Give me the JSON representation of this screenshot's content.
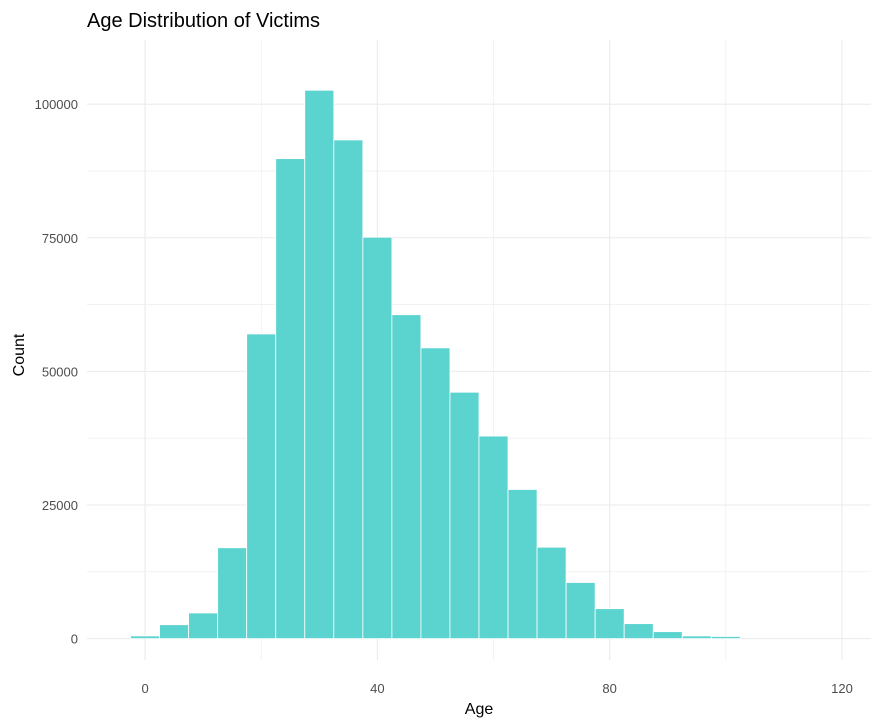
{
  "chart_data": {
    "type": "bar",
    "title": "Age Distribution of Victims",
    "xlabel": "Age",
    "ylabel": "Count",
    "bin_width": 5,
    "x": [
      0,
      5,
      10,
      15,
      20,
      25,
      30,
      35,
      40,
      45,
      50,
      55,
      60,
      65,
      70,
      75,
      80,
      85,
      90,
      95,
      100
    ],
    "values": [
      500,
      2600,
      4800,
      17000,
      57000,
      89800,
      102600,
      93300,
      75100,
      60600,
      54400,
      46100,
      37900,
      27900,
      17100,
      10500,
      5600,
      2800,
      1300,
      500,
      400
    ],
    "xlim": [
      -10,
      125
    ],
    "ylim": [
      -4000,
      112000
    ],
    "x_ticks": [
      0,
      40,
      80,
      120
    ],
    "x_tick_labels": [
      "0",
      "40",
      "80",
      "120"
    ],
    "x_minor_ticks": [
      20,
      60,
      100
    ],
    "y_ticks": [
      0,
      25000,
      50000,
      75000,
      100000
    ],
    "y_tick_labels": [
      "0",
      "25000",
      "50000",
      "75000",
      "100000"
    ],
    "y_minor_ticks": [
      12500,
      37500,
      62500,
      87500
    ],
    "grid": true,
    "legend": "none",
    "colors": {
      "bar_fill": "#5BD3CF",
      "bar_stroke": "#ffffff",
      "grid": "#ebebeb",
      "background": "#ffffff"
    }
  }
}
